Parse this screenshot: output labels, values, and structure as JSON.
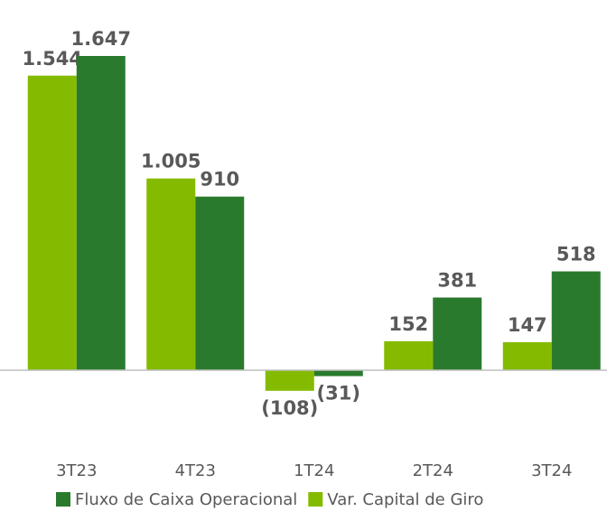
{
  "chart_data": {
    "type": "bar",
    "categories": [
      "3T23",
      "4T23",
      "1T24",
      "2T24",
      "3T24"
    ],
    "series": [
      {
        "name": "Var. Capital de Giro",
        "color": "#84bb00",
        "values": [
          1544,
          1005,
          -108,
          152,
          147
        ],
        "value_labels": [
          "1.544",
          "1.005",
          "(108)",
          "152",
          "147"
        ]
      },
      {
        "name": "Fluxo de Caixa Operacional",
        "color": "#2a7a2e",
        "values": [
          1647,
          910,
          -31,
          381,
          518
        ],
        "value_labels": [
          "1.647",
          "910",
          "(31)",
          "381",
          "518"
        ]
      }
    ],
    "legend_order": [
      1,
      0
    ]
  }
}
